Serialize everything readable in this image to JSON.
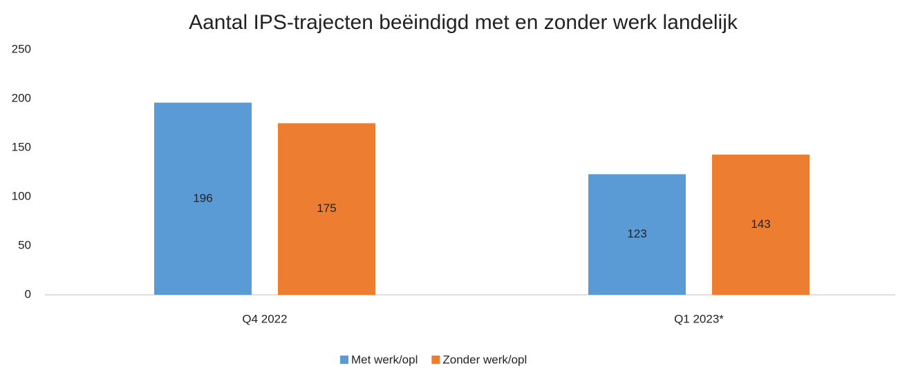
{
  "chart_data": {
    "type": "bar",
    "title": "Aantal IPS-trajecten beëindigd met en zonder werk landelijk",
    "categories": [
      "Q4 2022",
      "Q1 2023*"
    ],
    "series": [
      {
        "name": "Met werk/opl",
        "color": "#5b9bd5",
        "values": [
          196,
          123
        ]
      },
      {
        "name": "Zonder werk/opl",
        "color": "#ed7d31",
        "values": [
          175,
          143
        ]
      }
    ],
    "ylim": [
      0,
      250
    ],
    "yticks": [
      0,
      50,
      100,
      150,
      200,
      250
    ],
    "grid": false,
    "legend": "bottom"
  }
}
